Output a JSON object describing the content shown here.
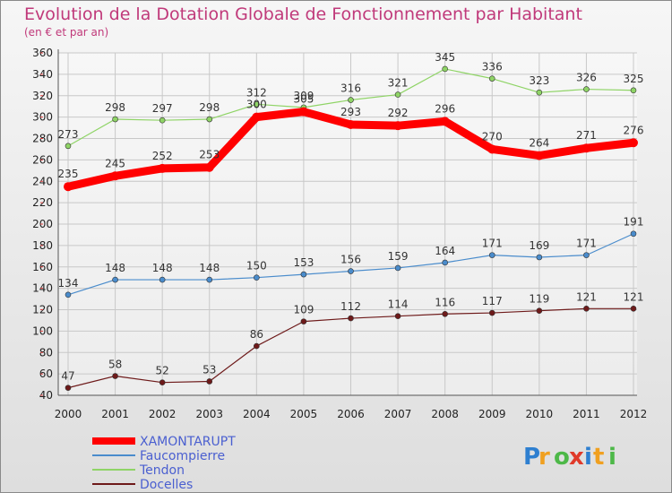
{
  "chart_data": {
    "type": "line",
    "title": "Evolution de la Dotation Globale de Fonctionnement par Habitant",
    "subtitle": "(en € et par an)",
    "x": [
      "2000",
      "2001",
      "2002",
      "2003",
      "2004",
      "2005",
      "2006",
      "2007",
      "2008",
      "2009",
      "2010",
      "2011",
      "2012"
    ],
    "ylim": [
      40,
      360
    ],
    "yticks": [
      40,
      60,
      80,
      100,
      120,
      140,
      160,
      180,
      200,
      220,
      240,
      260,
      280,
      300,
      320,
      340,
      360
    ],
    "grid": true,
    "legend_position": "bottom-left",
    "series": [
      {
        "name": "XAMONTARUPT",
        "color": "#ff0000",
        "values": [
          235,
          245,
          252,
          253,
          300,
          305,
          293,
          292,
          296,
          270,
          264,
          271,
          276
        ]
      },
      {
        "name": "Faucompierre",
        "color": "#4a8ccc",
        "values": [
          134,
          148,
          148,
          148,
          150,
          153,
          156,
          159,
          164,
          171,
          169,
          171,
          191
        ]
      },
      {
        "name": "Tendon",
        "color": "#8fd466",
        "values": [
          273,
          298,
          297,
          298,
          312,
          309,
          316,
          321,
          345,
          336,
          323,
          326,
          325
        ]
      },
      {
        "name": "Docelles",
        "color": "#6e1a1a",
        "values": [
          47,
          58,
          52,
          53,
          86,
          109,
          112,
          114,
          116,
          117,
          119,
          121,
          121
        ]
      }
    ]
  },
  "logo": {
    "text": "Proxiti"
  }
}
